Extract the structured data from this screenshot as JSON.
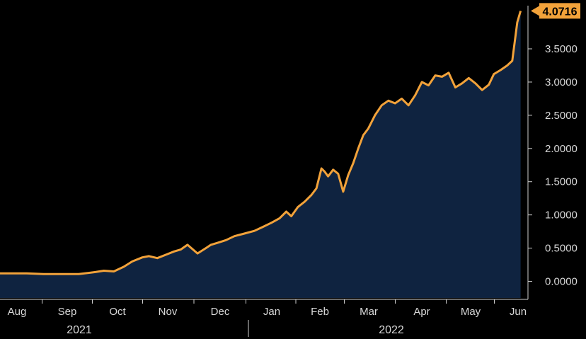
{
  "chart_data": {
    "type": "area",
    "title": "",
    "xlabel": "",
    "ylabel": "",
    "ylim": [
      -0.25,
      4.15
    ],
    "grid": false,
    "legend": "none",
    "y_ticks": [
      0.0,
      0.5,
      1.0,
      1.5,
      2.0,
      2.5,
      3.0,
      3.5
    ],
    "y_tick_labels": [
      "0.0000",
      "0.5000",
      "1.0000",
      "1.5000",
      "2.0000",
      "2.5000",
      "3.0000",
      "3.5000"
    ],
    "x_month_labels": [
      "Aug",
      "Sep",
      "Oct",
      "Nov",
      "Dec",
      "Jan",
      "Feb",
      "Mar",
      "Apr",
      "May",
      "Jun"
    ],
    "x_year_labels": [
      "2021",
      "2022"
    ],
    "last_value_label": "4.0716",
    "colors": {
      "line": "#f2a23a",
      "fill": "#0f2340",
      "background": "#000000",
      "axis": "#cfcfcf"
    },
    "series": [
      {
        "x": [
          "2021-07-25",
          "2021-08-01",
          "2021-08-10",
          "2021-08-20",
          "2021-08-30",
          "2021-09-10",
          "2021-09-20",
          "2021-09-25",
          "2021-10-01",
          "2021-10-07",
          "2021-10-12",
          "2021-10-18",
          "2021-10-22",
          "2021-10-27",
          "2021-11-01",
          "2021-11-06",
          "2021-11-10",
          "2021-11-14",
          "2021-11-20",
          "2021-11-25",
          "2021-11-28",
          "2021-12-02",
          "2021-12-07",
          "2021-12-12",
          "2021-12-18",
          "2021-12-24",
          "2021-12-29",
          "2022-01-03",
          "2022-01-08",
          "2022-01-12",
          "2022-01-15",
          "2022-01-19",
          "2022-01-23",
          "2022-01-27",
          "2022-01-30",
          "2022-02-02",
          "2022-02-04",
          "2022-02-06",
          "2022-02-09",
          "2022-02-12",
          "2022-02-15",
          "2022-02-18",
          "2022-02-21",
          "2022-02-24",
          "2022-02-27",
          "2022-03-02",
          "2022-03-06",
          "2022-03-10",
          "2022-03-14",
          "2022-03-18",
          "2022-03-22",
          "2022-03-26",
          "2022-03-30",
          "2022-04-03",
          "2022-04-07",
          "2022-04-11",
          "2022-04-15",
          "2022-04-19",
          "2022-04-23",
          "2022-04-27",
          "2022-05-01",
          "2022-05-05",
          "2022-05-09",
          "2022-05-13",
          "2022-05-16",
          "2022-05-20",
          "2022-05-24",
          "2022-05-27",
          "2022-05-30",
          "2022-06-01"
        ],
        "values": [
          0.12,
          0.12,
          0.12,
          0.11,
          0.11,
          0.11,
          0.14,
          0.16,
          0.15,
          0.22,
          0.3,
          0.36,
          0.38,
          0.35,
          0.4,
          0.45,
          0.48,
          0.55,
          0.42,
          0.5,
          0.55,
          0.58,
          0.62,
          0.68,
          0.72,
          0.76,
          0.82,
          0.88,
          0.95,
          1.05,
          0.98,
          1.12,
          1.2,
          1.3,
          1.4,
          1.7,
          1.65,
          1.58,
          1.68,
          1.62,
          1.35,
          1.6,
          1.78,
          2.0,
          2.2,
          2.3,
          2.5,
          2.65,
          2.72,
          2.68,
          2.75,
          2.65,
          2.8,
          3.0,
          2.95,
          3.1,
          3.08,
          3.14,
          2.92,
          2.98,
          3.06,
          2.98,
          2.88,
          2.96,
          3.12,
          3.18,
          3.25,
          3.32,
          3.9,
          4.0716
        ]
      }
    ]
  }
}
